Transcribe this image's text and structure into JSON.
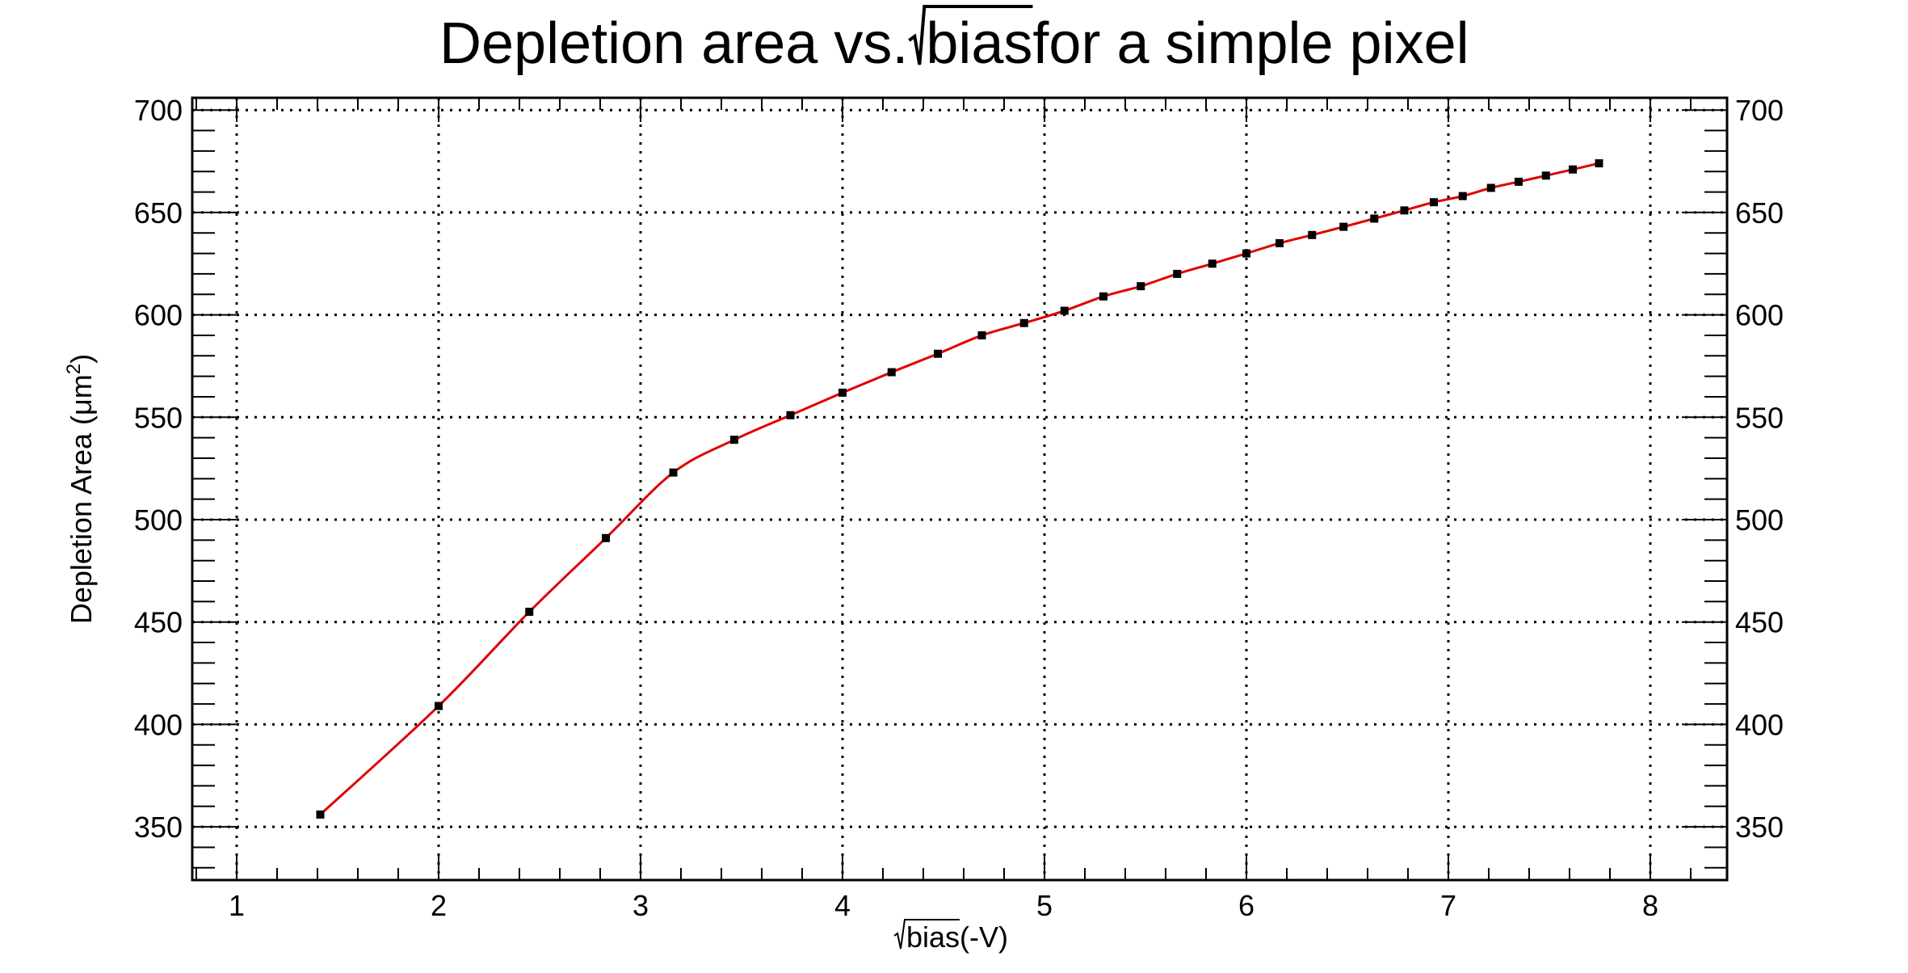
{
  "chart_data": {
    "type": "line",
    "title": {
      "before": "Depletion area vs. ",
      "sqrt_arg": "bias",
      "after": " for a simple pixel"
    },
    "xlabel": {
      "sqrt_arg": "bias",
      "suffix": " (-V)"
    },
    "ylabel": {
      "main": "Depletion Area (μm",
      "sup": "2",
      "close": ")"
    },
    "xlim": [
      0.78,
      8.38
    ],
    "ylim": [
      324,
      706
    ],
    "x_ticks": [
      1,
      2,
      3,
      4,
      5,
      6,
      7,
      8
    ],
    "x_tick_labels": [
      "1",
      "2",
      "3",
      "4",
      "5",
      "6",
      "7",
      "8"
    ],
    "y_ticks": [
      350,
      400,
      450,
      500,
      550,
      600,
      650,
      700
    ],
    "y_tick_labels": [
      "350",
      "400",
      "450",
      "500",
      "550",
      "600",
      "650",
      "700"
    ],
    "y_tick_labels_right": true,
    "grid": true,
    "series": [
      {
        "color": "#e00000",
        "marker_color": "#000000",
        "x": [
          1.414,
          2.0,
          2.449,
          2.828,
          3.162,
          3.464,
          3.742,
          4.0,
          4.243,
          4.472,
          4.69,
          4.899,
          5.099,
          5.292,
          5.477,
          5.657,
          5.831,
          6.0,
          6.164,
          6.325,
          6.481,
          6.633,
          6.782,
          6.928,
          7.071,
          7.211,
          7.348,
          7.483,
          7.616,
          7.746
        ],
        "y": [
          356,
          409,
          455,
          491,
          523,
          539,
          551,
          562,
          572,
          581,
          590,
          596,
          602,
          609,
          614,
          620,
          625,
          630,
          635,
          639,
          643,
          647,
          651,
          655,
          658,
          662,
          665,
          668,
          671,
          674
        ]
      }
    ]
  }
}
